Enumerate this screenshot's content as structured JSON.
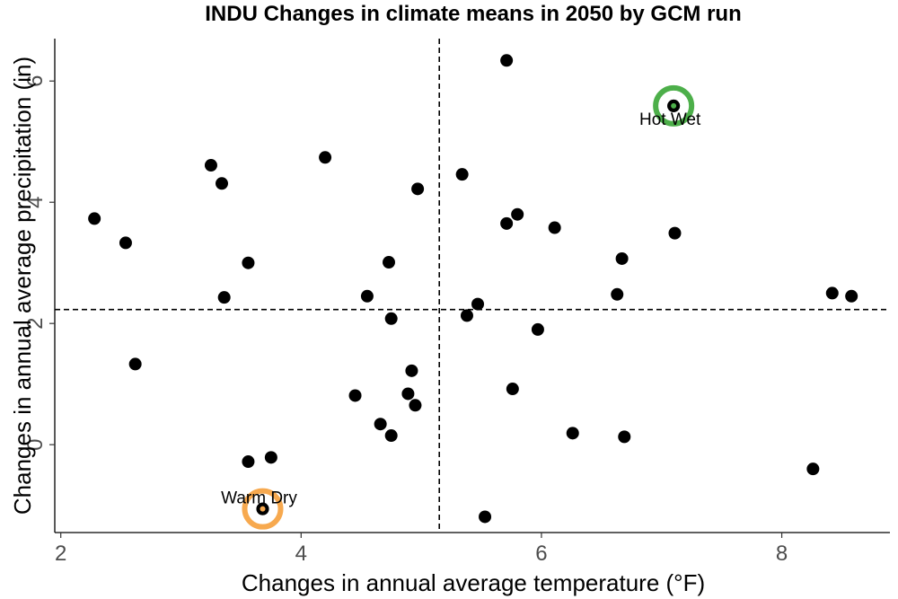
{
  "chart_data": {
    "type": "scatter",
    "title": "INDU Changes in climate means in 2050 by GCM run",
    "xlabel": "Changes in annual average temperature (°F)",
    "ylabel": "Changes in annual average precipitation (in)",
    "xlim": [
      1.95,
      8.9
    ],
    "ylim": [
      -1.45,
      6.7
    ],
    "xticks": [
      2,
      4,
      6,
      8
    ],
    "xtick_labels": [
      "2",
      "4",
      "6",
      "8"
    ],
    "yticks": [
      0,
      2,
      4,
      6
    ],
    "ytick_labels": [
      "0",
      "2",
      "4",
      "6"
    ],
    "grid": false,
    "reference_lines": {
      "x": 5.15,
      "y": 2.23
    },
    "colors": {
      "points": "#000000",
      "hot_wet": "#4daf4a",
      "warm_dry": "#f7a94f",
      "reference": "#000000"
    },
    "points": [
      {
        "x": 2.28,
        "y": 3.73
      },
      {
        "x": 2.54,
        "y": 3.33
      },
      {
        "x": 2.62,
        "y": 1.33
      },
      {
        "x": 3.25,
        "y": 4.61
      },
      {
        "x": 3.34,
        "y": 4.31
      },
      {
        "x": 3.36,
        "y": 2.43
      },
      {
        "x": 3.56,
        "y": 3.0
      },
      {
        "x": 3.56,
        "y": -0.28
      },
      {
        "x": 3.75,
        "y": -0.21
      },
      {
        "x": 3.68,
        "y": -1.06
      },
      {
        "x": 4.2,
        "y": 4.74
      },
      {
        "x": 4.45,
        "y": 0.81
      },
      {
        "x": 4.55,
        "y": 2.45
      },
      {
        "x": 4.66,
        "y": 0.34
      },
      {
        "x": 4.73,
        "y": 3.01
      },
      {
        "x": 4.75,
        "y": 2.08
      },
      {
        "x": 4.75,
        "y": 0.15
      },
      {
        "x": 4.89,
        "y": 0.84
      },
      {
        "x": 4.92,
        "y": 1.22
      },
      {
        "x": 4.95,
        "y": 0.65
      },
      {
        "x": 4.97,
        "y": 4.22
      },
      {
        "x": 5.34,
        "y": 4.46
      },
      {
        "x": 5.38,
        "y": 2.13
      },
      {
        "x": 5.47,
        "y": 2.32
      },
      {
        "x": 5.53,
        "y": -1.19
      },
      {
        "x": 5.71,
        "y": 6.34
      },
      {
        "x": 5.71,
        "y": 3.65
      },
      {
        "x": 5.76,
        "y": 0.92
      },
      {
        "x": 5.8,
        "y": 3.8
      },
      {
        "x": 5.97,
        "y": 1.9
      },
      {
        "x": 6.11,
        "y": 3.58
      },
      {
        "x": 6.26,
        "y": 0.19
      },
      {
        "x": 6.63,
        "y": 2.48
      },
      {
        "x": 6.67,
        "y": 3.07
      },
      {
        "x": 6.69,
        "y": 0.13
      },
      {
        "x": 7.1,
        "y": 5.59
      },
      {
        "x": 7.11,
        "y": 3.49
      },
      {
        "x": 8.26,
        "y": -0.4
      },
      {
        "x": 8.42,
        "y": 2.5
      },
      {
        "x": 8.58,
        "y": 2.45
      }
    ],
    "highlights": [
      {
        "label": "Hot Wet",
        "x": 7.1,
        "y": 5.59,
        "color": "#4daf4a"
      },
      {
        "label": "Warm Dry",
        "x": 3.68,
        "y": -1.06,
        "color": "#f7a94f"
      }
    ]
  }
}
